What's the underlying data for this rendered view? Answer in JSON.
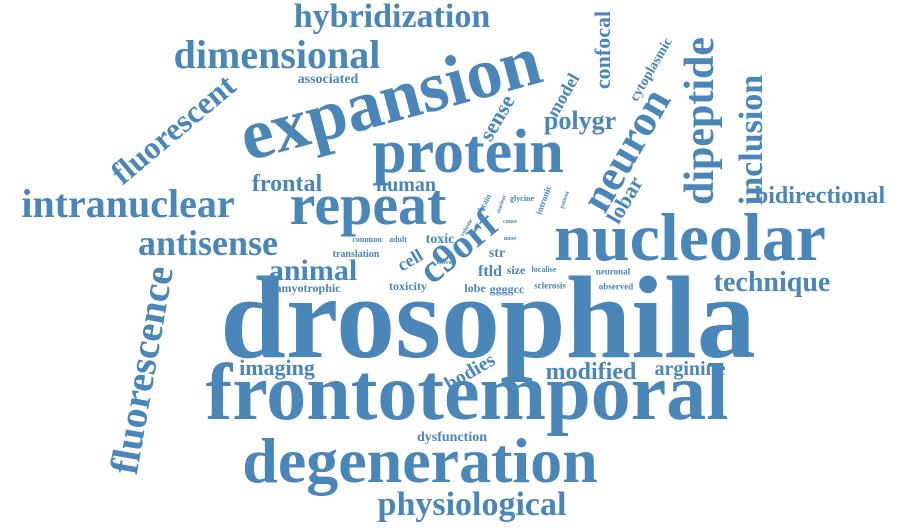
{
  "color": "#4a86b8",
  "words": [
    {
      "text": "drosophila"
    },
    {
      "text": "frontotemporal"
    },
    {
      "text": "degeneration"
    },
    {
      "text": "nucleolar"
    },
    {
      "text": "expansion"
    },
    {
      "text": "protein"
    },
    {
      "text": "repeat"
    },
    {
      "text": "intranuclear"
    },
    {
      "text": "dimensional"
    },
    {
      "text": "hybridization"
    },
    {
      "text": "antisense"
    },
    {
      "text": "physiological"
    },
    {
      "text": "fluorescence"
    },
    {
      "text": "fluorescent"
    },
    {
      "text": "neuron"
    },
    {
      "text": "dipeptide"
    },
    {
      "text": "inclusion"
    },
    {
      "text": "bidirectional"
    },
    {
      "text": "technique"
    },
    {
      "text": "animal"
    },
    {
      "text": "c9orf"
    },
    {
      "text": "modified"
    },
    {
      "text": "arginine"
    },
    {
      "text": "imaging"
    },
    {
      "text": "bodies"
    },
    {
      "text": "frontal"
    },
    {
      "text": "human"
    },
    {
      "text": "polygr"
    },
    {
      "text": "sense"
    },
    {
      "text": "lobar"
    },
    {
      "text": "confocal"
    },
    {
      "text": "model"
    },
    {
      "text": "cytoplasmic"
    },
    {
      "text": "associated"
    },
    {
      "text": "dysfunction"
    },
    {
      "text": "amyotrophic"
    },
    {
      "text": "toxicity"
    },
    {
      "text": "toxic"
    },
    {
      "text": "translation"
    },
    {
      "text": "common"
    },
    {
      "text": "adult"
    },
    {
      "text": "cell"
    },
    {
      "text": "ftld"
    },
    {
      "text": "str"
    },
    {
      "text": "size"
    },
    {
      "text": "localise"
    },
    {
      "text": "lobe"
    },
    {
      "text": "ggggcc"
    },
    {
      "text": "sclerosis"
    },
    {
      "text": "neuronal"
    },
    {
      "text": "observed"
    },
    {
      "text": "glycine"
    },
    {
      "text": "intronic"
    },
    {
      "text": "brain"
    },
    {
      "text": "nuclear"
    },
    {
      "text": "patient"
    },
    {
      "text": "cause"
    },
    {
      "text": "most"
    },
    {
      "text": "volume"
    },
    {
      "text": "lateral"
    }
  ]
}
